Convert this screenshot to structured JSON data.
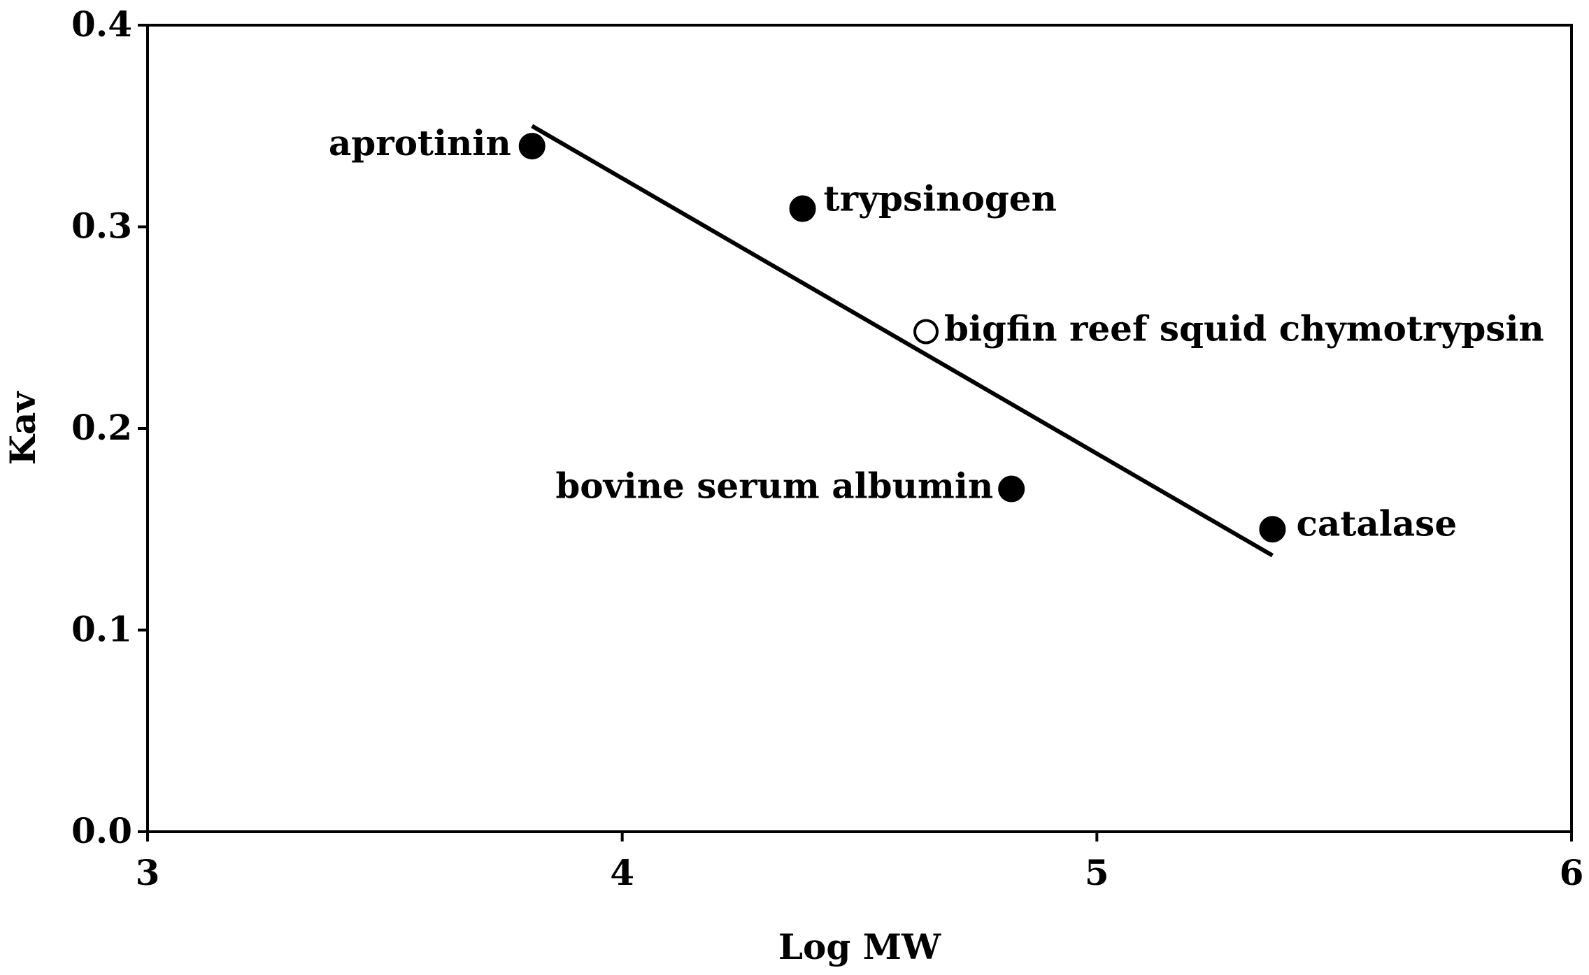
{
  "chart_data": {
    "type": "scatter",
    "title": "",
    "xlabel": "Log MW",
    "ylabel": "Kav",
    "xlim": [
      3,
      6
    ],
    "ylim": [
      0.0,
      0.4
    ],
    "x_ticks": [
      "3",
      "4",
      "5",
      "6"
    ],
    "y_ticks": [
      "0.0",
      "0.1",
      "0.2",
      "0.3",
      "0.4"
    ],
    "grid": false,
    "legend": "none",
    "points": [
      {
        "label": "aprotinin",
        "x": 3.81,
        "y": 0.34,
        "marker": "filled"
      },
      {
        "label": "trypsinogen",
        "x": 4.38,
        "y": 0.309,
        "marker": "filled"
      },
      {
        "label": "bigfin reef squid chymotrypsin",
        "x": 4.64,
        "y": 0.248,
        "marker": "open"
      },
      {
        "label": "bovine serum albumin",
        "x": 4.82,
        "y": 0.17,
        "marker": "filled"
      },
      {
        "label": "catalase",
        "x": 5.37,
        "y": 0.15,
        "marker": "filled"
      }
    ],
    "trendline": {
      "x": [
        3.81,
        5.37
      ],
      "y": [
        0.35,
        0.137
      ]
    },
    "colors": {
      "marker": "#000000",
      "line": "#000000",
      "background": "#ffffff"
    }
  }
}
